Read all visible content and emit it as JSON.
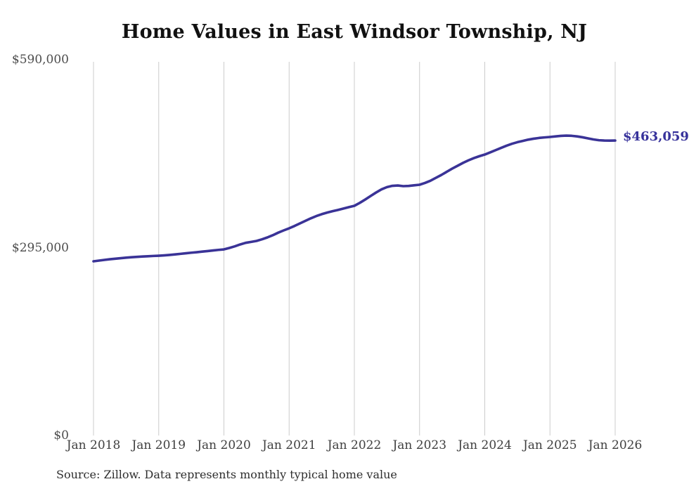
{
  "title": "Home Values in East Windsor Township, NJ",
  "source_note": "Source: Zillow. Data represents monthly typical home value",
  "end_label": "$463,059",
  "colors": {
    "line": "#3a3397",
    "end_label": "#37329b",
    "grid": "#cccccc",
    "title": "#111111",
    "tick_text": "#4d4d4d",
    "background": "#ffffff"
  },
  "chart_data": {
    "type": "line",
    "title": "Home Values in East Windsor Township, NJ",
    "xlabel": "",
    "ylabel": "",
    "ylim": [
      0,
      590000
    ],
    "grid": "vertical-only",
    "legend": "none",
    "y_ticks": [
      {
        "label": "$0",
        "value": 0
      },
      {
        "label": "$295,000",
        "value": 295000
      },
      {
        "label": "$590,000",
        "value": 590000
      }
    ],
    "x_tick_labels": [
      "Jan 2018",
      "Jan 2019",
      "Jan 2020",
      "Jan 2021",
      "Jan 2022",
      "Jan 2023",
      "Jan 2024",
      "Jan 2025",
      "Jan 2026"
    ],
    "series": [
      {
        "name": "Monthly typical home value",
        "start": "Jan 2018",
        "interval": "monthly",
        "end_value": 463059,
        "end_value_label": "$463,059",
        "values": [
          273500,
          274600,
          275700,
          276700,
          277600,
          278400,
          279200,
          279900,
          280500,
          281000,
          281400,
          281900,
          282300,
          282800,
          283500,
          284300,
          285200,
          286100,
          287000,
          287800,
          288700,
          289600,
          290500,
          291400,
          292200,
          294500,
          297000,
          300000,
          302500,
          304000,
          305500,
          308000,
          311000,
          314500,
          318500,
          322000,
          325300,
          329000,
          333000,
          337000,
          341000,
          344500,
          347500,
          350000,
          352200,
          354200,
          356300,
          358500,
          360600,
          365200,
          370500,
          376000,
          381500,
          386500,
          390000,
          392000,
          392500,
          391500,
          391800,
          392800,
          393700,
          396500,
          400000,
          404500,
          409000,
          414000,
          419000,
          423500,
          428000,
          432000,
          435500,
          438500,
          441100,
          444500,
          448000,
          451500,
          455000,
          458000,
          460500,
          462500,
          464500,
          466000,
          467200,
          468000,
          468700,
          469600,
          470400,
          470800,
          470500,
          469600,
          468200,
          466500,
          464800,
          463600,
          463100,
          463000,
          463059
        ]
      }
    ]
  }
}
